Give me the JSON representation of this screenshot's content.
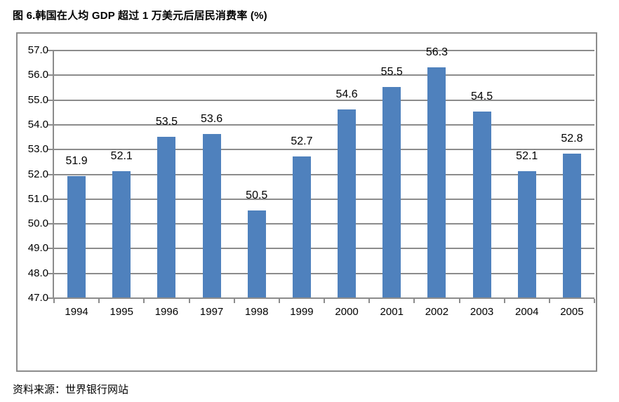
{
  "page": {
    "title": "图 6.韩国在人均 GDP 超过 1 万美元后居民消费率 (%)",
    "source_note": "资料来源：世界银行网站"
  },
  "chart_data": {
    "type": "bar",
    "title": "图 6.韩国在人均 GDP 超过 1 万美元后居民消费率 (%)",
    "categories": [
      "1994",
      "1995",
      "1996",
      "1997",
      "1998",
      "1999",
      "2000",
      "2001",
      "2002",
      "2003",
      "2004",
      "2005"
    ],
    "values": [
      51.9,
      52.1,
      53.5,
      53.6,
      50.5,
      52.7,
      54.6,
      55.5,
      56.3,
      54.5,
      52.1,
      52.8
    ],
    "data_labels": [
      "51.9",
      "52.1",
      "53.5",
      "53.6",
      "50.5",
      "52.7",
      "54.6",
      "55.5",
      "56.3",
      "54.5",
      "52.1",
      "52.8"
    ],
    "xlabel": "",
    "ylabel": "",
    "ylim": [
      47.0,
      57.0
    ],
    "ytick_step": 1.0,
    "ytick_labels": [
      "47.0",
      "48.0",
      "49.0",
      "50.0",
      "51.0",
      "52.0",
      "53.0",
      "54.0",
      "55.0",
      "56.0",
      "57.0"
    ],
    "grid": true,
    "legend": "none",
    "colors": {
      "bar": "#4F81BD",
      "grid": "#8C8C8C",
      "text": "#000000",
      "background": "#FFFFFF"
    },
    "source_note": "资料来源：世界银行网站"
  }
}
